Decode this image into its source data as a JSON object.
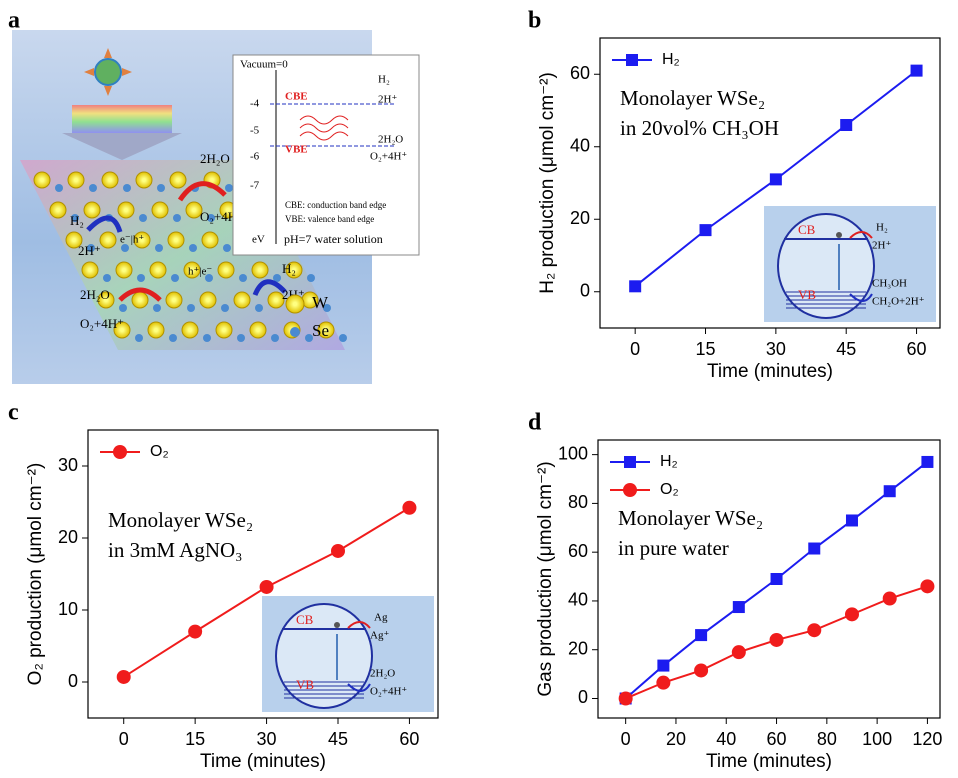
{
  "diagram": {
    "panel": "a",
    "energy_levels": [
      "Vacuum=0",
      "-4",
      "-5",
      "-6",
      "-7",
      "eV"
    ],
    "band_labels": [
      "CBE",
      "VBE"
    ],
    "reactions": [
      "H₂",
      "2H⁺",
      "2H₂O",
      "O₂+4H⁺"
    ],
    "notes": [
      "CBE: conduction band edge",
      "VBE: valence band edge",
      "pH=7 water solution"
    ],
    "lattice_labels": [
      "2H₂O",
      "O₂+4H⁺",
      "H₂",
      "2H⁺",
      "e⁻|h⁺",
      "h⁺|e⁻",
      "H₂",
      "2H⁺",
      "2H₂O",
      "O₂+4H⁺"
    ],
    "legend": [
      "W",
      "Se"
    ]
  },
  "chart_data": [
    {
      "panel": "b",
      "type": "line",
      "xlabel": "Time (minutes)",
      "ylabel": "H₂ production (μmol cm⁻²)",
      "x": [
        0,
        15,
        30,
        45,
        60
      ],
      "series": [
        {
          "name": "H₂",
          "color": "#1c1cf0",
          "marker": "square",
          "values": [
            1.5,
            17,
            31,
            46,
            61
          ]
        }
      ],
      "xlim": [
        -7.5,
        65
      ],
      "ylim": [
        -10,
        70
      ],
      "xticks": [
        0,
        15,
        30,
        45,
        60
      ],
      "yticks": [
        0,
        20,
        40,
        60
      ],
      "legend": "upper left",
      "annotation": [
        "Monolayer WSe₂",
        "in 20vol% CH₃OH"
      ],
      "inset": {
        "cb": "CB",
        "vb": "VB",
        "top": [
          "H₂",
          "2H⁺"
        ],
        "bottom": [
          "CH₃OH",
          "CH₂O+2H⁺"
        ]
      }
    },
    {
      "panel": "c",
      "type": "line",
      "xlabel": "Time (minutes)",
      "ylabel": "O₂ production (μmol cm⁻²)",
      "x": [
        0,
        15,
        30,
        45,
        60
      ],
      "series": [
        {
          "name": "O₂",
          "color": "#f01c1c",
          "marker": "circle",
          "values": [
            0.7,
            7,
            13.2,
            18.2,
            24.2
          ]
        }
      ],
      "xlim": [
        -7.5,
        66
      ],
      "ylim": [
        -5,
        35
      ],
      "xticks": [
        0,
        15,
        30,
        45,
        60
      ],
      "yticks": [
        0,
        10,
        20,
        30
      ],
      "legend": "upper left",
      "annotation": [
        "Monolayer WSe₂",
        "in 3mM AgNO₃"
      ],
      "inset": {
        "cb": "CB",
        "vb": "VB",
        "top": [
          "Ag",
          "Ag⁺"
        ],
        "bottom": [
          "2H₂O",
          "O₂+4H⁺"
        ]
      }
    },
    {
      "panel": "d",
      "type": "line",
      "xlabel": "Time (minutes)",
      "ylabel": "Gas production (μmol cm⁻²)",
      "x": [
        0,
        15,
        30,
        45,
        60,
        75,
        90,
        105,
        120
      ],
      "series": [
        {
          "name": "H₂",
          "color": "#1c1cf0",
          "marker": "square",
          "values": [
            0,
            13.5,
            26,
            37.5,
            49,
            61.5,
            73,
            85,
            97
          ]
        },
        {
          "name": "O₂",
          "color": "#f01c1c",
          "marker": "circle",
          "values": [
            0,
            6.5,
            11.5,
            19,
            24,
            28,
            34.5,
            41,
            46
          ]
        }
      ],
      "xlim": [
        -11,
        125
      ],
      "ylim": [
        -8,
        106
      ],
      "xticks": [
        0,
        20,
        40,
        60,
        80,
        100,
        120
      ],
      "yticks": [
        0,
        20,
        40,
        60,
        80,
        100
      ],
      "legend": "upper left",
      "annotation": [
        "Monolayer WSe₂",
        "in pure water"
      ]
    }
  ]
}
